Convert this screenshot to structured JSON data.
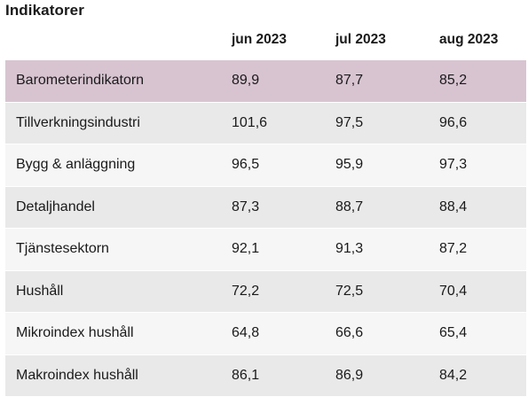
{
  "title": "Indikatorer",
  "columns": [
    "",
    "jun 2023",
    "jul 2023",
    "aug 2023"
  ],
  "rows": [
    {
      "label": "Barometerindikatorn",
      "values": [
        "89,9",
        "87,7",
        "85,2"
      ]
    },
    {
      "label": "Tillverkningsindustri",
      "values": [
        "101,6",
        "97,5",
        "96,6"
      ]
    },
    {
      "label": "Bygg & anläggning",
      "values": [
        "96,5",
        "95,9",
        "97,3"
      ]
    },
    {
      "label": "Detaljhandel",
      "values": [
        "87,3",
        "88,7",
        "88,4"
      ]
    },
    {
      "label": "Tjänstesektorn",
      "values": [
        "92,1",
        "91,3",
        "87,2"
      ]
    },
    {
      "label": "Hushåll",
      "values": [
        "72,2",
        "72,5",
        "70,4"
      ]
    },
    {
      "label": "Mikroindex hushåll",
      "values": [
        "64,8",
        "66,6",
        "65,4"
      ]
    },
    {
      "label": "Makroindex hushåll",
      "values": [
        "86,1",
        "86,9",
        "84,2"
      ]
    }
  ],
  "colors": {
    "highlight_row": "#d8c4d1",
    "row_light": "#f6f6f6",
    "row_dark": "#e9e9e9"
  }
}
